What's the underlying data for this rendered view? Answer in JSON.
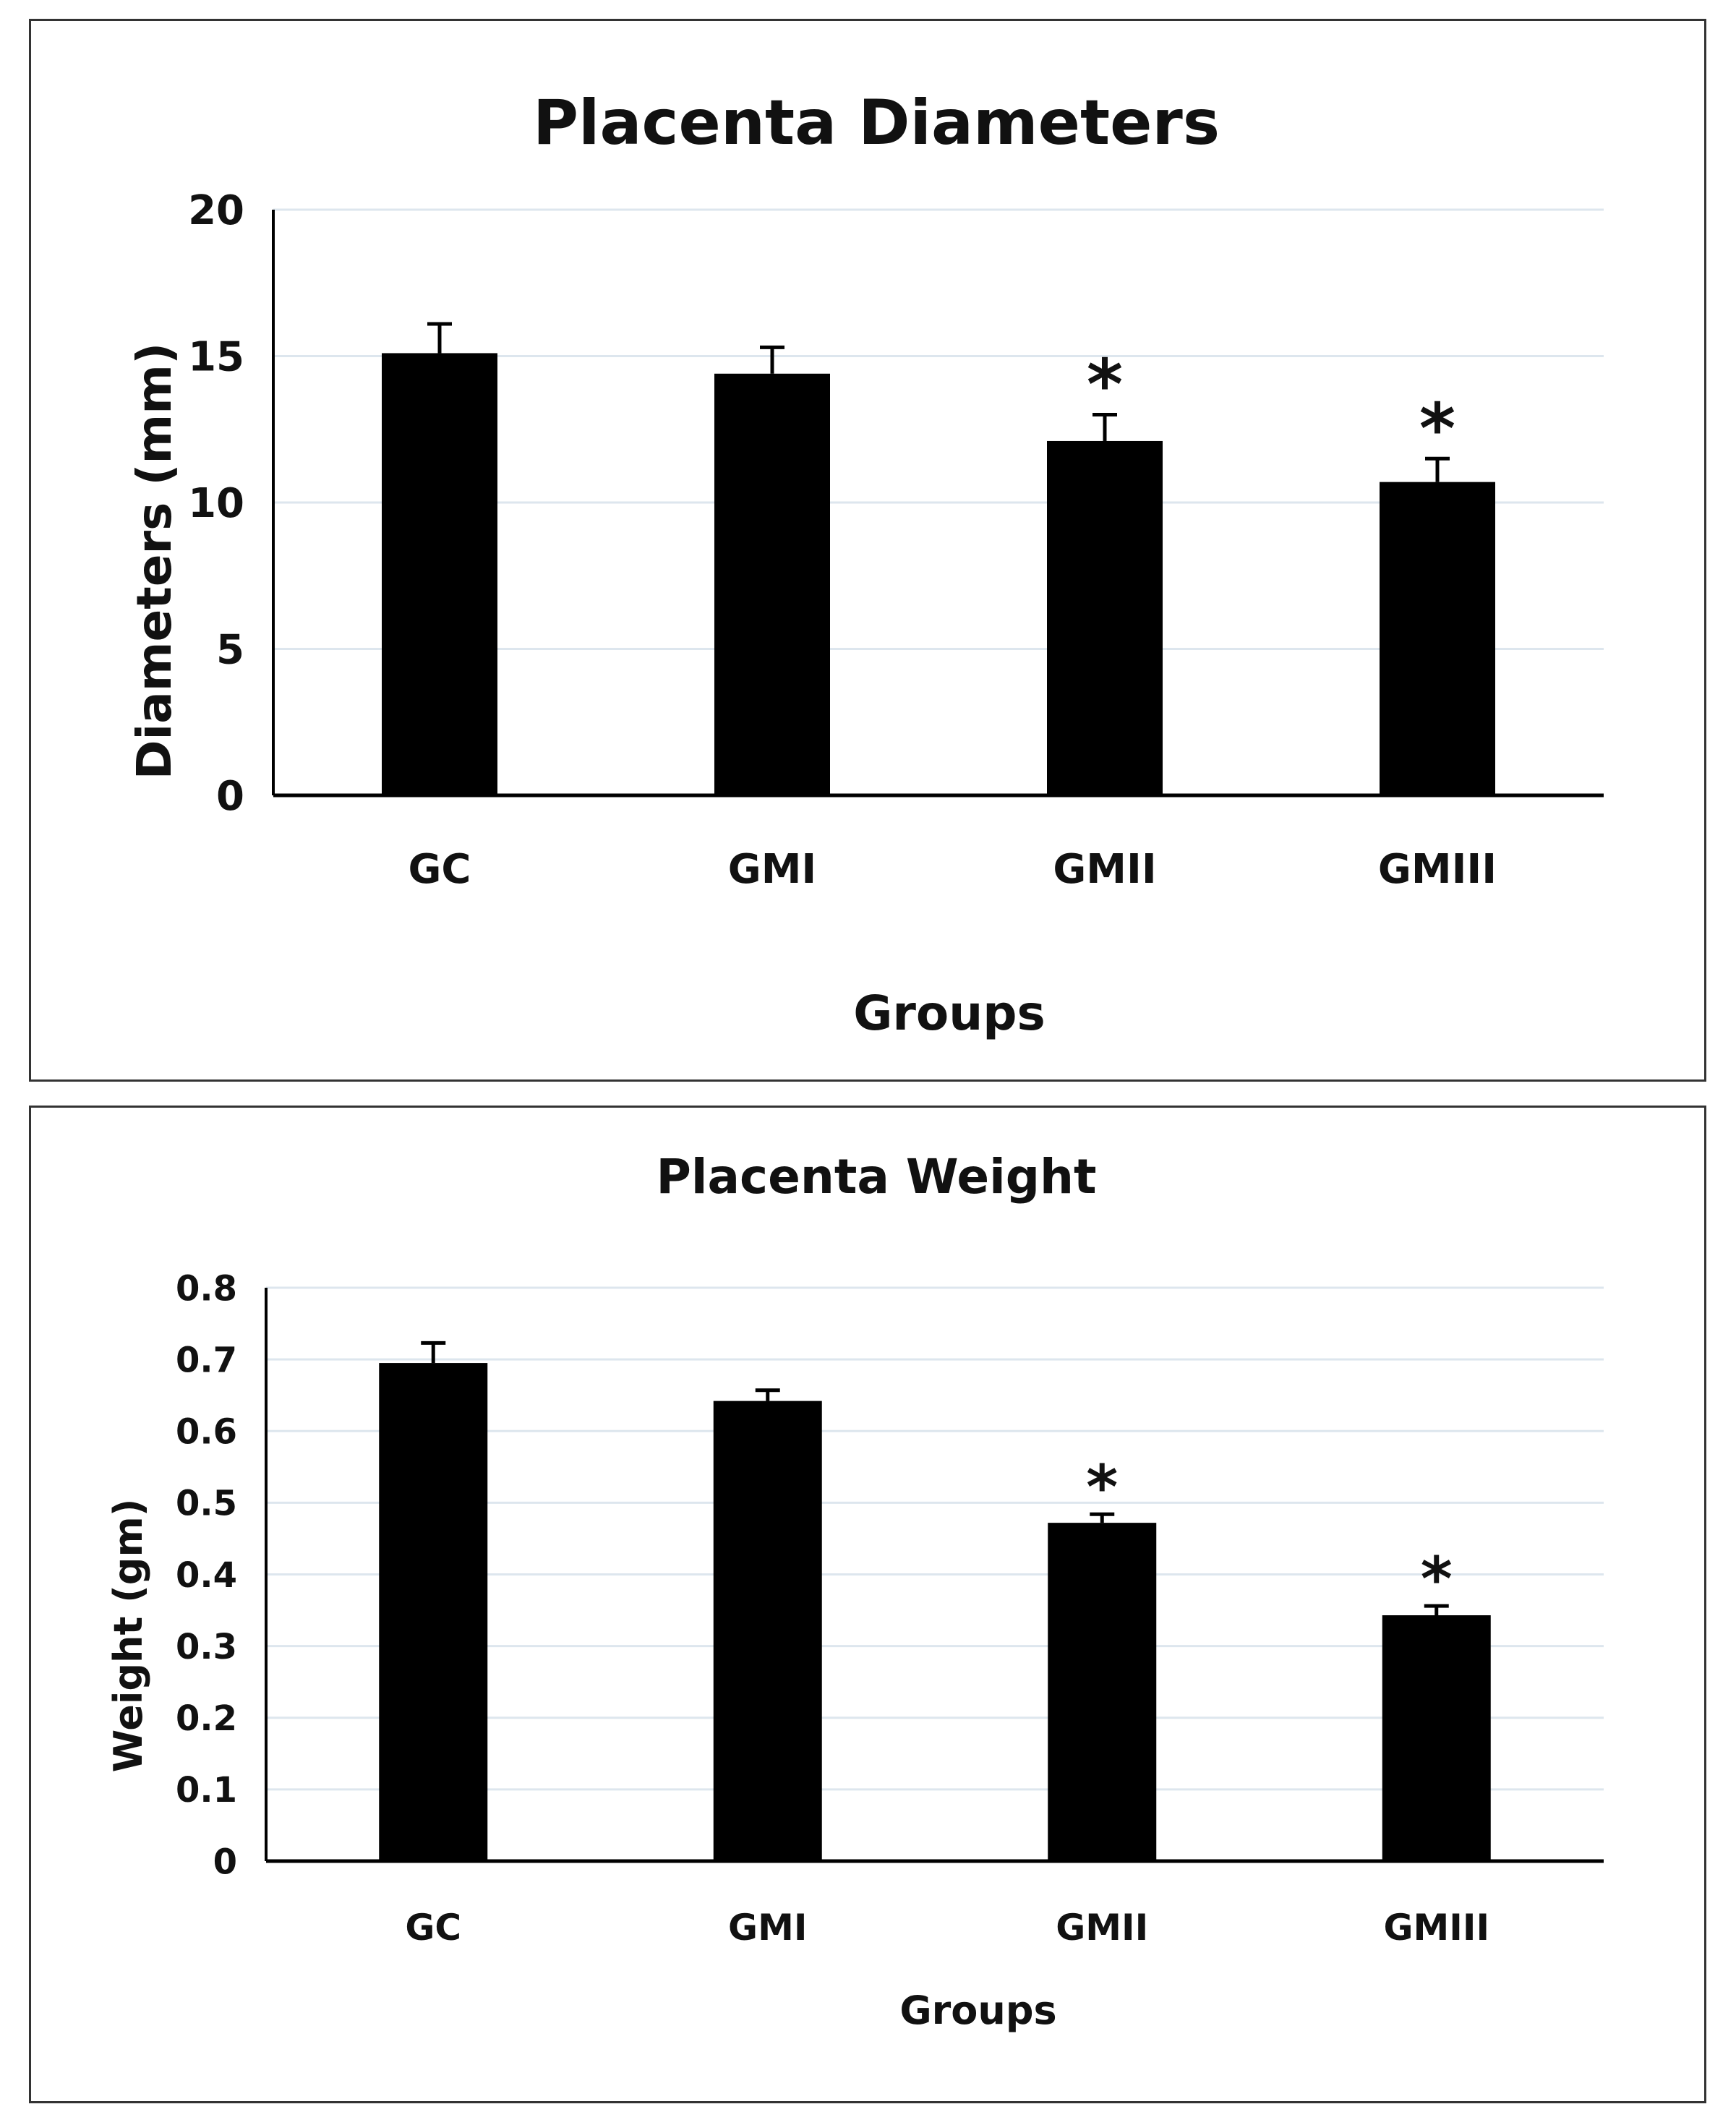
{
  "chart_data": [
    {
      "type": "bar",
      "title": "Placenta Diameters",
      "xlabel": "Groups",
      "ylabel": "Diameters (mm)",
      "categories": [
        "GC",
        "GMI",
        "GMII",
        "GMIII"
      ],
      "values": [
        15.1,
        14.4,
        12.1,
        10.7
      ],
      "errors": [
        1.0,
        0.9,
        0.9,
        0.8
      ],
      "significance": [
        "",
        "",
        "*",
        "*"
      ],
      "ylim": [
        0,
        20
      ],
      "yticks": [
        "0",
        "5",
        "10",
        "15",
        "20"
      ],
      "bar_color": "#000000",
      "grid_color": "#dde6ee"
    },
    {
      "type": "bar",
      "title": "Placenta Weight",
      "xlabel": "Groups",
      "ylabel": "Weight (gm)",
      "categories": [
        "GC",
        "GMI",
        "GMII",
        "GMIII"
      ],
      "values": [
        0.695,
        0.642,
        0.472,
        0.343
      ],
      "errors": [
        0.028,
        0.015,
        0.012,
        0.013
      ],
      "significance": [
        "",
        "",
        "*",
        "*"
      ],
      "ylim": [
        0,
        0.8
      ],
      "yticks": [
        "0",
        "0.1",
        "0.2",
        "0.3",
        "0.4",
        "0.5",
        "0.6",
        "0.7",
        "0.8"
      ],
      "bar_color": "#000000",
      "grid_color": "#dde6ee"
    }
  ]
}
